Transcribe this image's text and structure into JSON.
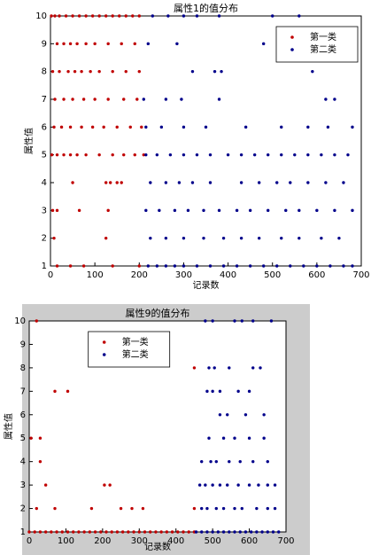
{
  "chart_data": [
    {
      "type": "scatter",
      "title": "属性1的值分布",
      "xlabel": "记录数",
      "ylabel": "属性值",
      "xlim": [
        0,
        700
      ],
      "ylim": [
        1,
        10
      ],
      "xticks": [
        0,
        100,
        200,
        300,
        400,
        500,
        600,
        700
      ],
      "yticks": [
        1,
        2,
        3,
        4,
        5,
        6,
        7,
        8,
        9,
        10
      ],
      "legend": "upper right",
      "series": [
        {
          "name": "第一类",
          "color": "#c00000",
          "x": [
            2,
            10,
            20,
            35,
            50,
            65,
            80,
            95,
            110,
            125,
            140,
            155,
            170,
            185,
            200,
            15,
            30,
            45,
            60,
            80,
            100,
            130,
            160,
            190,
            5,
            20,
            40,
            55,
            70,
            90,
            110,
            140,
            170,
            200,
            10,
            30,
            50,
            75,
            100,
            130,
            165,
            195,
            8,
            25,
            45,
            70,
            95,
            120,
            150,
            180,
            205,
            3,
            15,
            30,
            45,
            60,
            80,
            110,
            140,
            165,
            190,
            210,
            50,
            125,
            135,
            150,
            160,
            5,
            15,
            65,
            130,
            8,
            125,
            15,
            45,
            75,
            140,
            200
          ],
          "values": [
            10,
            10,
            10,
            10,
            10,
            10,
            10,
            10,
            10,
            10,
            10,
            10,
            10,
            10,
            10,
            9,
            9,
            9,
            9,
            9,
            9,
            9,
            9,
            9,
            8,
            8,
            8,
            8,
            8,
            8,
            8,
            8,
            8,
            8,
            7,
            7,
            7,
            7,
            7,
            7,
            7,
            7,
            6,
            6,
            6,
            6,
            6,
            6,
            6,
            6,
            6,
            5,
            5,
            5,
            5,
            5,
            5,
            5,
            5,
            5,
            5,
            5,
            4,
            4,
            4,
            4,
            4,
            3,
            3,
            3,
            3,
            2,
            2,
            1,
            1,
            1,
            1,
            1
          ]
        },
        {
          "name": "第二类",
          "color": "#00008b",
          "x": [
            230,
            265,
            300,
            330,
            380,
            500,
            560,
            220,
            285,
            480,
            600,
            320,
            370,
            385,
            590,
            210,
            260,
            295,
            380,
            620,
            640,
            215,
            250,
            300,
            350,
            440,
            520,
            580,
            625,
            680,
            215,
            240,
            270,
            300,
            330,
            360,
            400,
            430,
            460,
            490,
            520,
            550,
            580,
            610,
            640,
            670,
            225,
            260,
            290,
            320,
            360,
            430,
            470,
            510,
            540,
            580,
            620,
            660,
            215,
            245,
            280,
            310,
            345,
            380,
            420,
            450,
            490,
            530,
            560,
            600,
            640,
            680,
            225,
            260,
            300,
            345,
            390,
            430,
            470,
            520,
            560,
            610,
            650,
            220,
            240,
            260,
            280,
            300,
            330,
            360,
            390,
            420,
            450,
            480,
            510,
            540,
            570,
            600,
            630,
            660,
            680
          ],
          "values": [
            10,
            10,
            10,
            10,
            10,
            10,
            10,
            9,
            9,
            9,
            9,
            8,
            8,
            8,
            8,
            7,
            7,
            7,
            7,
            7,
            7,
            6,
            6,
            6,
            6,
            6,
            6,
            6,
            6,
            6,
            5,
            5,
            5,
            5,
            5,
            5,
            5,
            5,
            5,
            5,
            5,
            5,
            5,
            5,
            5,
            5,
            4,
            4,
            4,
            4,
            4,
            4,
            4,
            4,
            4,
            4,
            4,
            4,
            3,
            3,
            3,
            3,
            3,
            3,
            3,
            3,
            3,
            3,
            3,
            3,
            3,
            3,
            2,
            2,
            2,
            2,
            2,
            2,
            2,
            2,
            2,
            2,
            2,
            1,
            1,
            1,
            1,
            1,
            1,
            1,
            1,
            1,
            1,
            1,
            1,
            1,
            1,
            1,
            1,
            1,
            1
          ]
        }
      ]
    },
    {
      "type": "scatter",
      "title": "属性9的值分布",
      "xlabel": "记录数",
      "ylabel": "属性值",
      "xlim": [
        0,
        700
      ],
      "ylim": [
        1,
        10
      ],
      "xticks": [
        0,
        100,
        200,
        300,
        400,
        500,
        600,
        700
      ],
      "yticks": [
        1,
        2,
        3,
        4,
        5,
        6,
        7,
        8,
        9,
        10
      ],
      "legend": "upper left",
      "series": [
        {
          "name": "第一类",
          "color": "#c00000",
          "x": [
            20,
            450,
            70,
            105,
            5,
            30,
            30,
            45,
            205,
            220,
            20,
            70,
            170,
            250,
            280,
            310,
            450,
            0,
            15,
            30,
            45,
            60,
            75,
            90,
            105,
            120,
            135,
            150,
            165,
            180,
            195,
            210,
            225,
            240,
            255,
            270,
            285,
            300,
            315,
            330,
            345,
            360,
            375,
            390,
            405,
            420,
            435,
            450
          ],
          "values": [
            10,
            8,
            7,
            7,
            5,
            5,
            4,
            3,
            3,
            3,
            2,
            2,
            2,
            2,
            2,
            2,
            2,
            1,
            1,
            1,
            1,
            1,
            1,
            1,
            1,
            1,
            1,
            1,
            1,
            1,
            1,
            1,
            1,
            1,
            1,
            1,
            1,
            1,
            1,
            1,
            1,
            1,
            1,
            1,
            1,
            1,
            1,
            1
          ]
        },
        {
          "name": "第二类",
          "color": "#00008b",
          "x": [
            480,
            500,
            560,
            580,
            610,
            660,
            490,
            505,
            545,
            610,
            630,
            485,
            500,
            520,
            570,
            600,
            520,
            540,
            590,
            640,
            490,
            530,
            560,
            600,
            640,
            470,
            495,
            510,
            545,
            575,
            610,
            650,
            465,
            480,
            500,
            520,
            540,
            570,
            600,
            625,
            650,
            670,
            470,
            485,
            510,
            530,
            560,
            580,
            620,
            650,
            670,
            455,
            470,
            485,
            500,
            515,
            530,
            545,
            560,
            575,
            590,
            605,
            620,
            635,
            650,
            665,
            680
          ],
          "values": [
            10,
            10,
            10,
            10,
            10,
            10,
            8,
            8,
            8,
            8,
            8,
            7,
            7,
            7,
            7,
            7,
            6,
            6,
            6,
            6,
            5,
            5,
            5,
            5,
            5,
            4,
            4,
            4,
            4,
            4,
            4,
            4,
            3,
            3,
            3,
            3,
            3,
            3,
            3,
            3,
            3,
            3,
            2,
            2,
            2,
            2,
            2,
            2,
            2,
            2,
            2,
            1,
            1,
            1,
            1,
            1,
            1,
            1,
            1,
            1,
            1,
            1,
            1,
            1,
            1,
            1,
            1
          ]
        }
      ]
    }
  ]
}
